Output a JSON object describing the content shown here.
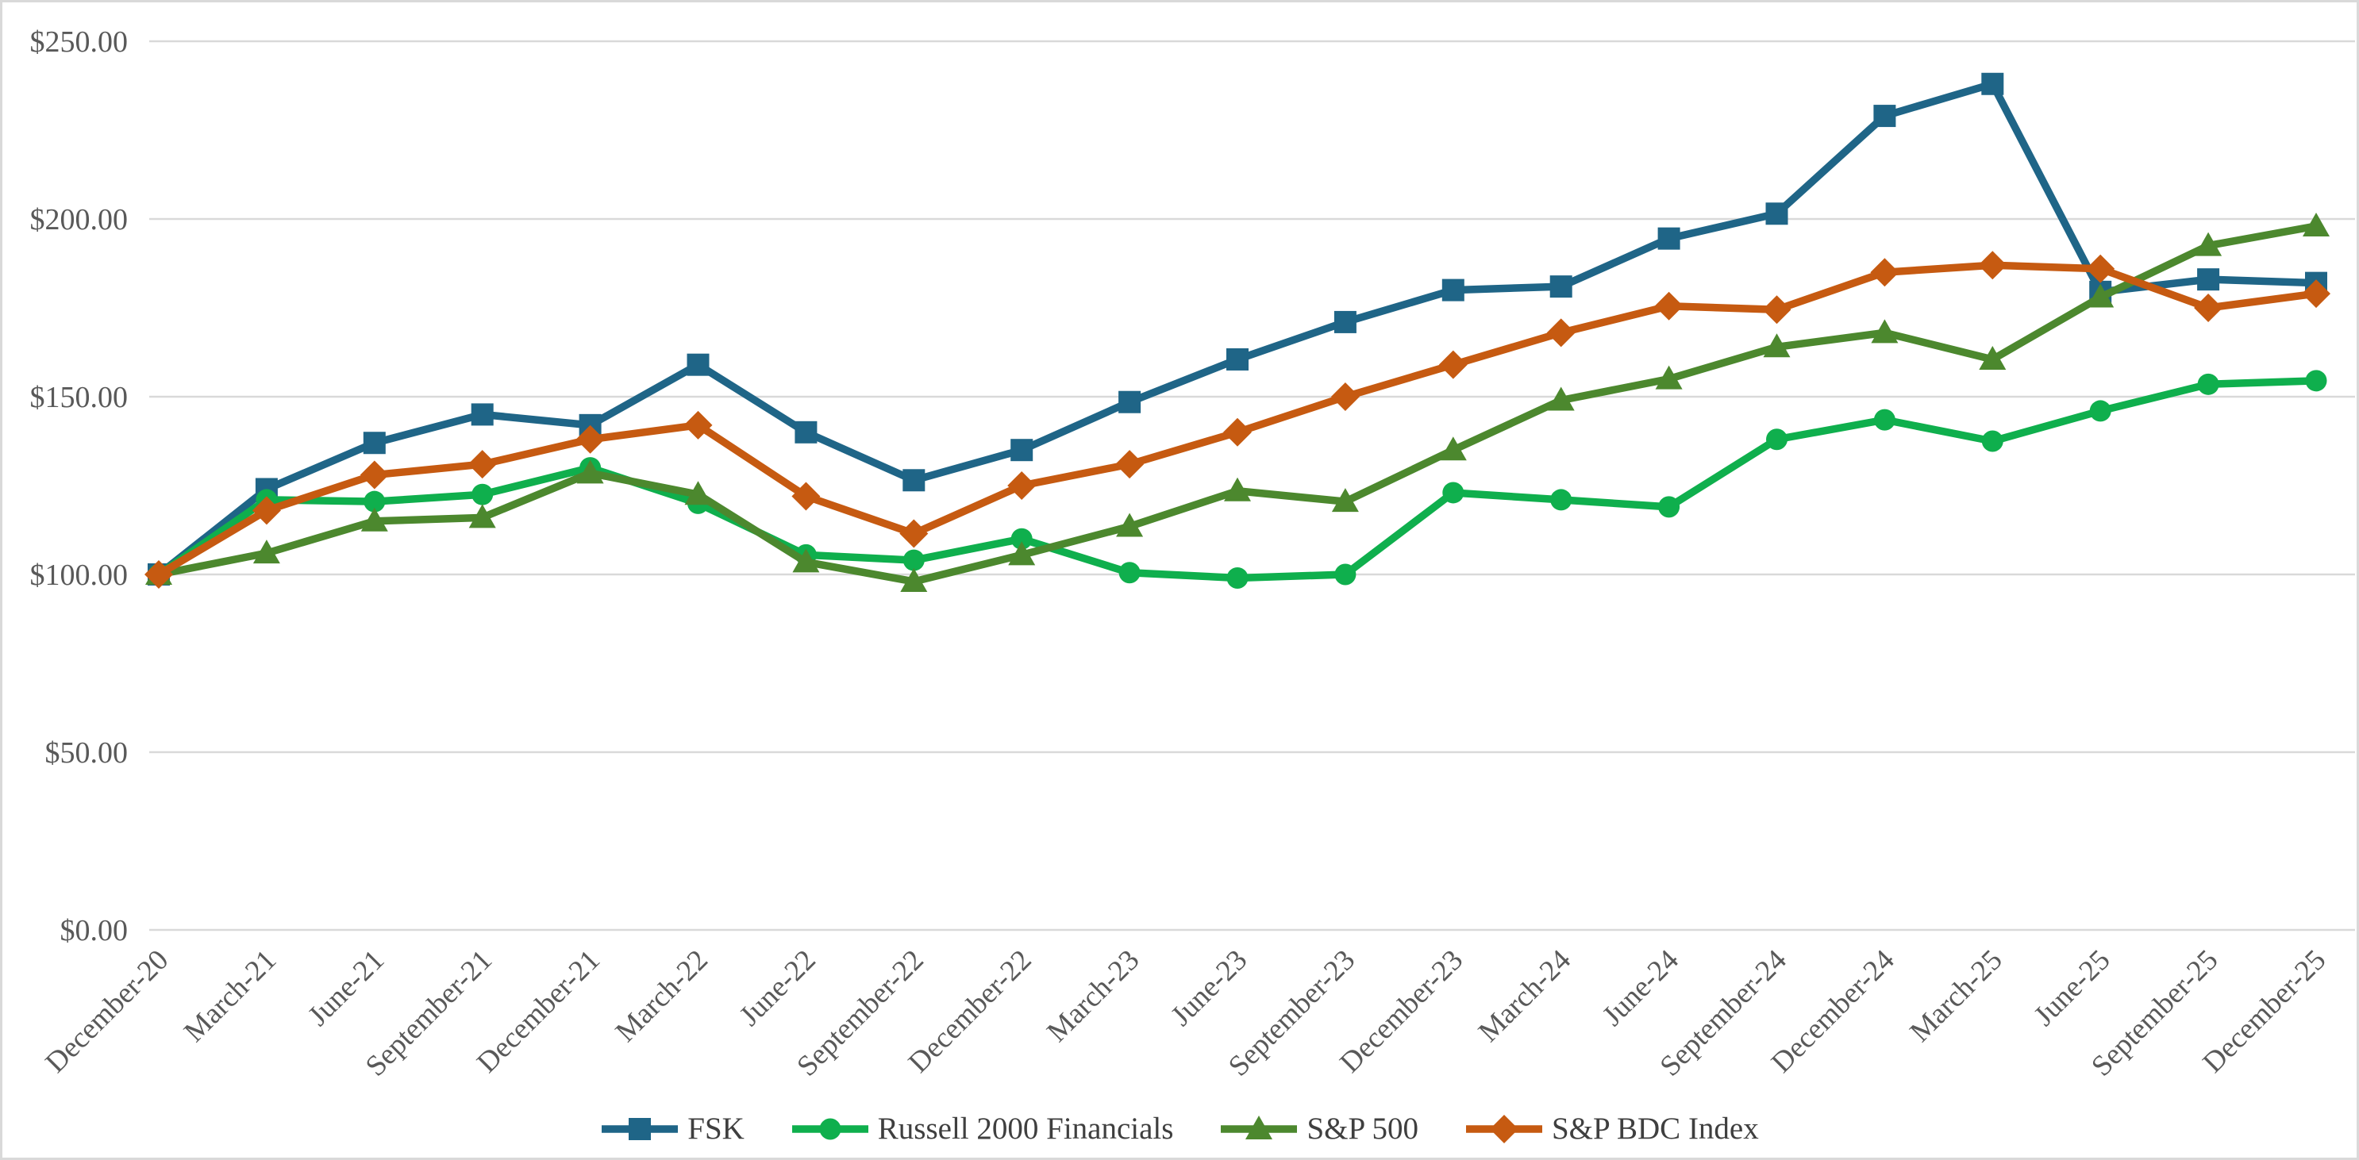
{
  "chart": {
    "background": "#FFFFFF",
    "border_color": "#D9D9D9",
    "grid_color": "#D9D9D9",
    "axis_label_color": "#595959",
    "legend_text_color": "#3F3F3F"
  },
  "chart_data": {
    "type": "line",
    "title": "",
    "xlabel": "",
    "ylabel": "",
    "ylim": [
      0,
      250
    ],
    "grid": "horizontal",
    "legend_position": "bottom-center",
    "y_ticks": [
      {
        "value": 250,
        "label": "$250.00"
      },
      {
        "value": 200,
        "label": "$200.00"
      },
      {
        "value": 150,
        "label": "$150.00"
      },
      {
        "value": 100,
        "label": "$100.00"
      },
      {
        "value": 50,
        "label": "$50.00"
      },
      {
        "value": 0,
        "label": "$0.00"
      }
    ],
    "categories": [
      "December-20",
      "March-21",
      "June-21",
      "September-21",
      "December-21",
      "March-22",
      "June-22",
      "September-22",
      "December-22",
      "March-23",
      "June-23",
      "September-23",
      "December-23",
      "March-24",
      "June-24",
      "September-24",
      "December-24",
      "March-25",
      "June-25",
      "September-25",
      "December-25"
    ],
    "series": [
      {
        "name": "FSK",
        "color": "#1F6587",
        "marker": "square",
        "values": [
          100,
          124,
          137,
          145,
          142,
          159,
          140,
          126.5,
          135,
          148.5,
          160.5,
          171,
          180,
          181,
          194.5,
          201.5,
          229,
          238,
          179.5,
          183,
          182
        ]
      },
      {
        "name": "Russell 2000 Financials",
        "color": "#0FAF4D",
        "marker": "circle",
        "values": [
          100,
          121,
          120.5,
          122.5,
          130,
          120,
          105.5,
          104,
          110,
          100.5,
          99,
          100,
          123,
          121,
          119,
          138,
          143.5,
          137.5,
          146,
          153.5,
          154.5
        ]
      },
      {
        "name": "S&P 500",
        "color": "#4C882E",
        "marker": "triangle",
        "values": [
          100,
          106,
          115,
          116,
          128.5,
          122.5,
          103.5,
          98,
          105.5,
          113.5,
          123.5,
          120.5,
          135,
          149,
          155,
          164,
          168,
          160.5,
          178,
          192.5,
          198
        ]
      },
      {
        "name": "S&P BDC Index",
        "color": "#C65A11",
        "marker": "diamond",
        "values": [
          100,
          118,
          128,
          131,
          138,
          142,
          122,
          111.5,
          125,
          131,
          140,
          150,
          159,
          168,
          175.5,
          174.5,
          185,
          187,
          186,
          175,
          179
        ]
      }
    ]
  }
}
